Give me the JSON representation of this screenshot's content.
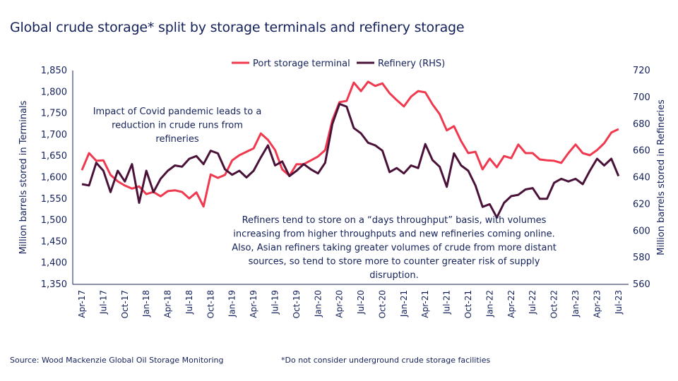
{
  "chart_data": {
    "type": "line",
    "title": "Global crude storage* split by storage terminals and refinery storage",
    "ylabel": "Million barrels stored in Terminals",
    "y2label": "Million barrels stored in Refineries",
    "ylim": [
      1350,
      1850
    ],
    "y2lim": [
      560,
      720
    ],
    "yticks": [
      "1,350",
      "1,400",
      "1,450",
      "1,500",
      "1,550",
      "1,600",
      "1,650",
      "1,700",
      "1,750",
      "1,800",
      "1,850"
    ],
    "y2ticks": [
      "560",
      "580",
      "600",
      "620",
      "640",
      "660",
      "680",
      "700",
      "720"
    ],
    "x_start": "Apr-17",
    "x_end": "Jul-23",
    "xticks": [
      "Apr-17",
      "Jul-17",
      "Oct-17",
      "Jan-18",
      "Apr-18",
      "Jul-18",
      "Oct-18",
      "Jan-19",
      "Apr-19",
      "Jul-19",
      "Oct-19",
      "Jan-20",
      "Apr-20",
      "Jul-20",
      "Oct-20",
      "Jan-21",
      "Apr-21",
      "Jul-21",
      "Oct-21",
      "Jan-22",
      "Apr-22",
      "Jul-22",
      "Oct-22",
      "Jan-23",
      "Apr-23",
      "Jul-23"
    ],
    "grid": false,
    "legend_placement": "top",
    "series": [
      {
        "name": "Port storage terminal",
        "axis": "left",
        "color": "#f0394f",
        "values": [
          1617,
          1657,
          1639,
          1640,
          1606,
          1591,
          1581,
          1574,
          1579,
          1561,
          1566,
          1556,
          1568,
          1570,
          1566,
          1551,
          1565,
          1532,
          1607,
          1599,
          1606,
          1640,
          1652,
          1660,
          1668,
          1703,
          1688,
          1664,
          1619,
          1604,
          1631,
          1631,
          1640,
          1649,
          1664,
          1734,
          1776,
          1779,
          1822,
          1802,
          1824,
          1814,
          1820,
          1797,
          1781,
          1766,
          1789,
          1802,
          1799,
          1771,
          1748,
          1710,
          1720,
          1685,
          1657,
          1660,
          1619,
          1644,
          1624,
          1650,
          1645,
          1677,
          1657,
          1657,
          1642,
          1640,
          1639,
          1634,
          1657,
          1677,
          1657,
          1652,
          1664,
          1680,
          1705,
          1713
        ]
      },
      {
        "name": "Refinery (RHS)",
        "axis": "right",
        "color": "#4a1238",
        "values": [
          635,
          634,
          651,
          645,
          629,
          645,
          637,
          650,
          621,
          645,
          629,
          639,
          645,
          649,
          648,
          654,
          656,
          650,
          660,
          658,
          646,
          642,
          645,
          640,
          645,
          655,
          664,
          649,
          652,
          641,
          645,
          650,
          646,
          643,
          651,
          680,
          695,
          693,
          677,
          673,
          666,
          664,
          660,
          644,
          647,
          643,
          649,
          647,
          665,
          653,
          648,
          633,
          658,
          649,
          645,
          634,
          618,
          620,
          610,
          621,
          626,
          627,
          631,
          632,
          624,
          624,
          636,
          639,
          637,
          639,
          635,
          645,
          654,
          649,
          654,
          641
        ]
      }
    ],
    "annotations": [
      {
        "lines": [
          "Impact of Covid pandemic leads to a",
          "reduction in crude runs from",
          "refineries"
        ]
      },
      {
        "lines": [
          "Refiners tend to store on a “days throughput” basis, with volumes",
          "increasing from higher throughputs  and new refineries coming online.",
          "Also, Asian refiners taking greater volumes of crude from more  distant",
          "sources, so tend to store more  to counter greater risk of supply",
          "disruption."
        ]
      }
    ]
  },
  "footer": {
    "source": "Source:  Wood Mackenzie Global Oil Storage Monitoring",
    "note": "*Do not consider underground crude storage facilities"
  }
}
